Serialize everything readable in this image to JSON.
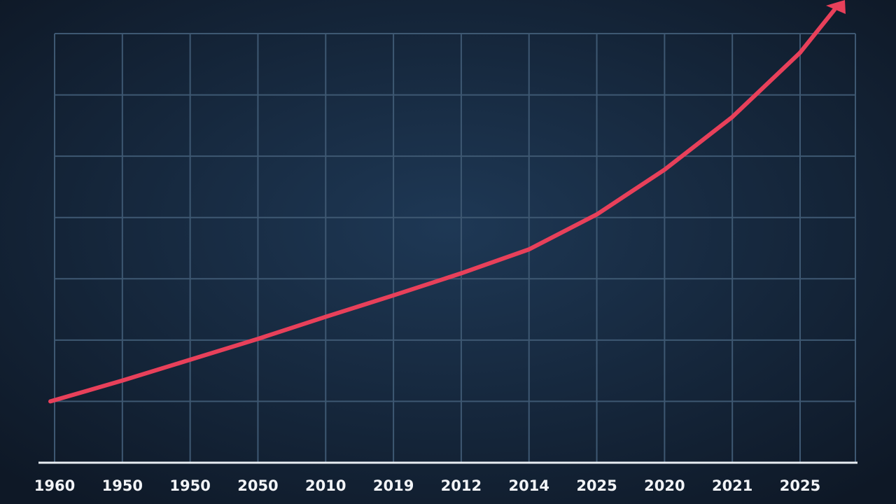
{
  "chart_data": {
    "type": "line",
    "categories": [
      "1960",
      "1950",
      "1950",
      "2050",
      "2010",
      "2019",
      "2012",
      "2014",
      "2025",
      "2020",
      "2021",
      "2025"
    ],
    "values": [
      1.0,
      1.34,
      1.68,
      2.02,
      2.38,
      2.73,
      3.09,
      3.48,
      4.05,
      4.78,
      5.64,
      6.69
    ],
    "color": "#e8405a",
    "ylim": [
      0,
      7
    ],
    "yticks": [
      1,
      2,
      3,
      4,
      5,
      6,
      7
    ],
    "grid": true
  }
}
